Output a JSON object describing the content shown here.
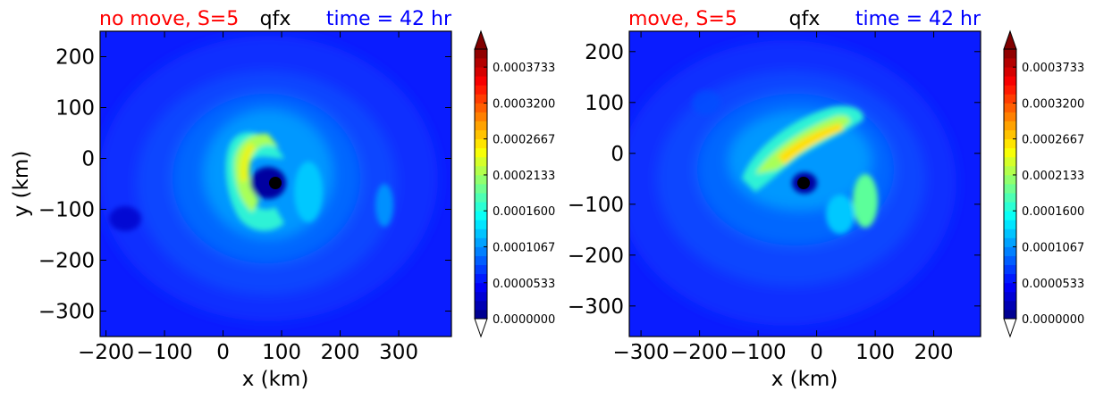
{
  "chart_data": [
    {
      "type": "heatmap",
      "title_left": "no move, S=5",
      "title_center": "qfx",
      "title_right": "time = 42 hr",
      "xlabel": "x (km)",
      "ylabel": "y (km)",
      "xlim": [
        -210,
        390
      ],
      "ylim": [
        -350,
        250
      ],
      "xticks": [
        -200,
        -100,
        0,
        100,
        200,
        300
      ],
      "xtick_labels": [
        "−200",
        "−100",
        "0",
        "100",
        "200",
        "300"
      ],
      "yticks": [
        -300,
        -200,
        -100,
        0,
        100,
        200
      ],
      "ytick_labels": [
        "−300",
        "−200",
        "−100",
        "0",
        "100",
        "200"
      ],
      "center_marker": [
        95,
        -50
      ],
      "eyewall_shape": "horseshoe ring open to the east, peak on the western side",
      "colorbar": {
        "min": 0.0,
        "max": 0.0004,
        "extend": "both",
        "tick_values": [
          0.0,
          5.33e-05,
          0.0001067,
          0.00016,
          0.0002133,
          0.0002667,
          0.00032,
          0.0003733
        ],
        "tick_labels": [
          "0.0000000",
          "0.0000533",
          "0.0001067",
          "0.0001600",
          "0.0002133",
          "0.0002667",
          "0.0003200",
          "0.0003733"
        ]
      }
    },
    {
      "type": "heatmap",
      "title_left": "move, S=5",
      "title_center": "qfx",
      "title_right": "time = 42 hr",
      "xlabel": "x (km)",
      "ylabel": "",
      "xlim": [
        -320,
        280
      ],
      "ylim": [
        -360,
        240
      ],
      "xticks": [
        -300,
        -200,
        -100,
        0,
        100,
        200
      ],
      "xtick_labels": [
        "−300",
        "−200",
        "−100",
        "0",
        "100",
        "200"
      ],
      "yticks": [
        -300,
        -200,
        -100,
        0,
        100,
        200
      ],
      "ytick_labels": [
        "−300",
        "−200",
        "−100",
        "0",
        "100",
        "200"
      ],
      "center_marker": [
        -15,
        -60
      ],
      "eyewall_shape": "band on the northern side, peak to the north-east, secondary maximum to the south-east",
      "colorbar": {
        "min": 0.0,
        "max": 0.0004,
        "extend": "both",
        "tick_values": [
          0.0,
          5.33e-05,
          0.0001067,
          0.00016,
          0.0002133,
          0.0002667,
          0.00032,
          0.0003733
        ],
        "tick_labels": [
          "0.0000000",
          "0.0000533",
          "0.0001067",
          "0.0001600",
          "0.0002133",
          "0.0002667",
          "0.0003200",
          "0.0003733"
        ]
      }
    }
  ]
}
